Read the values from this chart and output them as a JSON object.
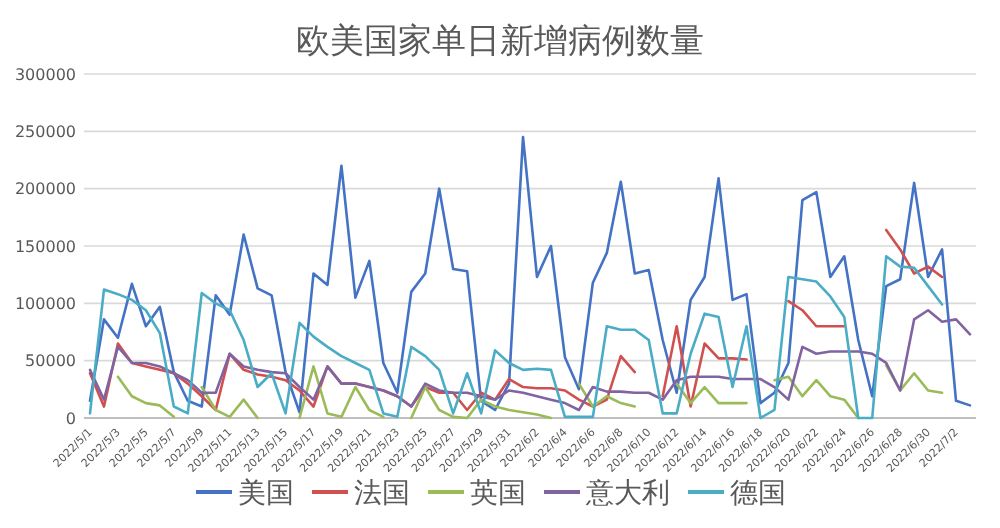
{
  "chart_data": {
    "type": "line",
    "title": "欧美国家单日新增病例数量",
    "categories": [
      "2022/5/1",
      null,
      "2022/5/3",
      null,
      "2022/5/5",
      null,
      "2022/5/7",
      null,
      "2022/5/9",
      null,
      "2022/5/11",
      null,
      "2022/5/13",
      null,
      "2022/5/15",
      null,
      "2022/5/17",
      null,
      "2022/5/19",
      null,
      "2022/5/21",
      null,
      "2022/5/23",
      null,
      "2022/5/25",
      null,
      "2022/5/27",
      null,
      "2022/5/29",
      null,
      "2022/5/31",
      null,
      "2022/6/2",
      null,
      "2022/6/4",
      null,
      "2022/6/6",
      null,
      "2022/6/8",
      null,
      "2022/6/10",
      null,
      "2022/6/12",
      null,
      "2022/6/14",
      null,
      "2022/6/16",
      null,
      "2022/6/18",
      null,
      "2022/6/20",
      null,
      "2022/6/22",
      null,
      "2022/6/24",
      null,
      "2022/6/26",
      null,
      "2022/6/28",
      null,
      "2022/6/30",
      null,
      "2022/7/2",
      null
    ],
    "series": [
      {
        "name": "美国",
        "color": "#4472c4",
        "values": [
          15000,
          86000,
          70000,
          117000,
          80000,
          97000,
          40000,
          15000,
          10000,
          107000,
          90000,
          160000,
          113000,
          107000,
          40000,
          5000,
          126000,
          116000,
          220000,
          105000,
          137000,
          48000,
          22000,
          110000,
          126000,
          200000,
          130000,
          128000,
          15000,
          7000,
          30000,
          245000,
          123000,
          150000,
          53000,
          25000,
          118000,
          144000,
          206000,
          126000,
          129000,
          68000,
          22000,
          103000,
          123000,
          209000,
          103000,
          108000,
          13000,
          22000,
          48000,
          190000,
          197000,
          123000,
          141000,
          68000,
          19000,
          115000,
          121000,
          205000,
          123000,
          147000,
          15000,
          11000
        ]
      },
      {
        "name": "法国",
        "color": "#d0504f",
        "values": [
          39000,
          10000,
          65000,
          48000,
          45000,
          42000,
          39000,
          30000,
          19000,
          7000,
          56000,
          42000,
          38000,
          36000,
          33000,
          24000,
          10000,
          45000,
          30000,
          30000,
          27000,
          24000,
          19000,
          10000,
          27000,
          22000,
          22000,
          7000,
          22000,
          16000,
          34000,
          27000,
          26000,
          26000,
          24000,
          16000,
          10000,
          16000,
          54000,
          40000,
          null,
          19000,
          80000,
          10000,
          65000,
          52000,
          52000,
          51000,
          null,
          null,
          102000,
          94000,
          80000,
          80000,
          80000,
          null,
          null,
          164000,
          147000,
          126000,
          132000,
          123000,
          null,
          null
        ]
      },
      {
        "name": "英国",
        "color": "#9bbb59",
        "values": [
          null,
          null,
          36000,
          19000,
          13000,
          11000,
          1000,
          null,
          27000,
          7000,
          1000,
          16000,
          0,
          null,
          null,
          0,
          45000,
          4000,
          1000,
          27000,
          7000,
          1000,
          null,
          0,
          27000,
          7000,
          1000,
          0,
          16000,
          10000,
          7000,
          5000,
          3000,
          0,
          null,
          30000,
          10000,
          19000,
          13000,
          10000,
          null,
          null,
          30000,
          13000,
          27000,
          13000,
          13000,
          13000,
          null,
          33000,
          36000,
          19000,
          33000,
          19000,
          16000,
          0,
          null,
          46000,
          24000,
          39000,
          24000,
          22000,
          null,
          null
        ]
      },
      {
        "name": "意大利",
        "color": "#8064a2",
        "values": [
          42000,
          16000,
          62000,
          48000,
          48000,
          45000,
          39000,
          33000,
          22000,
          22000,
          56000,
          45000,
          42000,
          40000,
          39000,
          27000,
          16000,
          45000,
          30000,
          30000,
          27000,
          24000,
          19000,
          10000,
          30000,
          24000,
          22000,
          22000,
          19000,
          16000,
          24000,
          22000,
          19000,
          16000,
          13000,
          7000,
          27000,
          23000,
          23000,
          22000,
          22000,
          16000,
          33000,
          36000,
          36000,
          36000,
          34000,
          34000,
          34000,
          27000,
          16000,
          62000,
          56000,
          58000,
          58000,
          58000,
          56000,
          48000,
          24000,
          86000,
          94000,
          84000,
          86000,
          73000
        ]
      },
      {
        "name": "德国",
        "color": "#4bacc6",
        "values": [
          4000,
          112000,
          108000,
          103000,
          94000,
          74000,
          10000,
          4000,
          109000,
          100000,
          94000,
          68000,
          27000,
          39000,
          4000,
          83000,
          71000,
          62000,
          54000,
          48000,
          42000,
          4000,
          1000,
          62000,
          54000,
          42000,
          4000,
          39000,
          4000,
          59000,
          48000,
          42000,
          43000,
          42000,
          1000,
          1000,
          1000,
          80000,
          77000,
          77000,
          68000,
          4000,
          4000,
          56000,
          91000,
          88000,
          27000,
          80000,
          0,
          7000,
          123000,
          121000,
          119000,
          106000,
          88000,
          0,
          0,
          141000,
          132000,
          131000,
          115000,
          99000,
          null,
          null
        ]
      }
    ],
    "ylim": [
      0,
      300000
    ],
    "yticks": [
      0,
      50000,
      100000,
      150000,
      200000,
      250000,
      300000
    ],
    "grid": "y",
    "legend": "bottom",
    "line_style": "solid",
    "marker": "none"
  }
}
